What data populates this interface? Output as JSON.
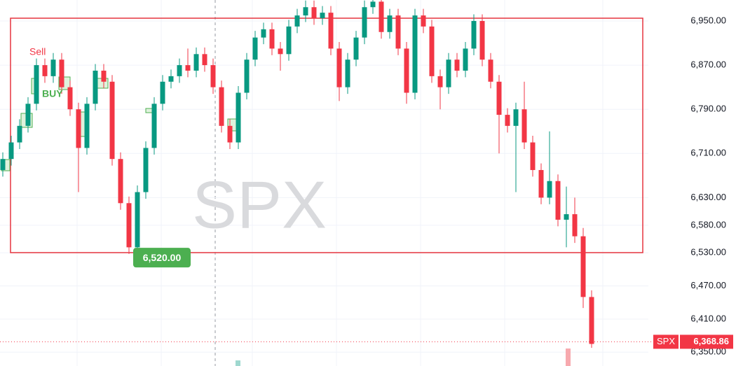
{
  "chart_data": {
    "type": "candlestick",
    "watermark": "SPX",
    "open": [
      6680,
      6700,
      6730,
      6760,
      6800,
      6870,
      6850,
      6880,
      6830,
      6790,
      6720,
      6800,
      6860,
      6840,
      6700,
      6620,
      6540,
      6640,
      6720,
      6800,
      6840,
      6850,
      6870,
      6860,
      6890,
      6870,
      6830,
      6760,
      6730,
      6820,
      6880,
      6920,
      6935,
      6900,
      6890,
      6940,
      6960,
      6975,
      6955,
      6965,
      6900,
      6830,
      6880,
      6920,
      6975,
      6985,
      6930,
      6960,
      6900,
      6820,
      6960,
      6940,
      6850,
      6830,
      6880,
      6860,
      6900,
      6950,
      6880,
      6840,
      6780,
      6760,
      6790,
      6730,
      6680,
      6630,
      6660,
      6590,
      6600,
      6560,
      6450
    ],
    "high": [
      6712,
      6742,
      6772,
      6812,
      6882,
      6882,
      6892,
      6892,
      6842,
      6802,
      6812,
      6872,
      6872,
      6852,
      6712,
      6632,
      6652,
      6732,
      6812,
      6852,
      6862,
      6882,
      6900,
      6902,
      6902,
      6882,
      6842,
      6772,
      6832,
      6892,
      6932,
      6947,
      6947,
      6912,
      6952,
      6972,
      6987,
      6987,
      6977,
      6977,
      6912,
      6892,
      6932,
      6987,
      6988,
      6988,
      6972,
      6972,
      6912,
      6972,
      6972,
      6952,
      6862,
      6892,
      6892,
      6912,
      6962,
      6962,
      6892,
      6852,
      6792,
      6802,
      6840,
      6742,
      6692,
      6750,
      6672,
      6650,
      6630,
      6575,
      6462
    ],
    "low": [
      6668,
      6688,
      6718,
      6748,
      6788,
      6838,
      6838,
      6818,
      6778,
      6640,
      6708,
      6788,
      6828,
      6688,
      6608,
      6528,
      6528,
      6628,
      6708,
      6788,
      6828,
      6838,
      6848,
      6848,
      6858,
      6818,
      6748,
      6718,
      6718,
      6808,
      6868,
      6908,
      6888,
      6860,
      6878,
      6928,
      6948,
      6943,
      6943,
      6888,
      6805,
      6818,
      6868,
      6908,
      6963,
      6918,
      6918,
      6888,
      6800,
      6808,
      6928,
      6838,
      6790,
      6818,
      6848,
      6848,
      6888,
      6868,
      6828,
      6710,
      6748,
      6640,
      6718,
      6668,
      6618,
      6618,
      6578,
      6540,
      6548,
      6430,
      6358
    ],
    "close": [
      6700,
      6730,
      6760,
      6800,
      6870,
      6850,
      6880,
      6830,
      6790,
      6720,
      6800,
      6860,
      6840,
      6700,
      6620,
      6540,
      6640,
      6720,
      6800,
      6840,
      6850,
      6870,
      6860,
      6890,
      6870,
      6830,
      6760,
      6730,
      6820,
      6880,
      6920,
      6935,
      6900,
      6890,
      6940,
      6960,
      6975,
      6955,
      6965,
      6900,
      6830,
      6880,
      6920,
      6975,
      6985,
      6930,
      6960,
      6900,
      6820,
      6960,
      6940,
      6850,
      6830,
      6880,
      6860,
      6900,
      6950,
      6880,
      6840,
      6780,
      6760,
      6790,
      6730,
      6680,
      6630,
      6660,
      6590,
      6600,
      6560,
      6450,
      6365
    ],
    "up_color": "#089981",
    "down_color": "#f23645",
    "ylim": [
      6325,
      6988
    ],
    "yticks": [
      {
        "value": 6950,
        "label": "6,950.00"
      },
      {
        "value": 6870,
        "label": "6,870.00"
      },
      {
        "value": 6790,
        "label": "6,790.00"
      },
      {
        "value": 6710,
        "label": "6,710.00"
      },
      {
        "value": 6630,
        "label": "6,630.00"
      },
      {
        "value": 6580,
        "label": "6,580.00"
      },
      {
        "value": 6530,
        "label": "6,530.00"
      },
      {
        "value": 6470,
        "label": "6,470.00"
      },
      {
        "value": 6410,
        "label": "6,410.00"
      },
      {
        "value": 6350,
        "label": "6,350.00"
      }
    ],
    "annotations": [
      {
        "text": "Sell"
      },
      {
        "text": "BUY"
      }
    ],
    "price_tag": {
      "value": 6520,
      "label": "6,520.00"
    },
    "last_price": {
      "symbol": "SPX",
      "value": 6368.86,
      "label": "6,368.86"
    }
  }
}
